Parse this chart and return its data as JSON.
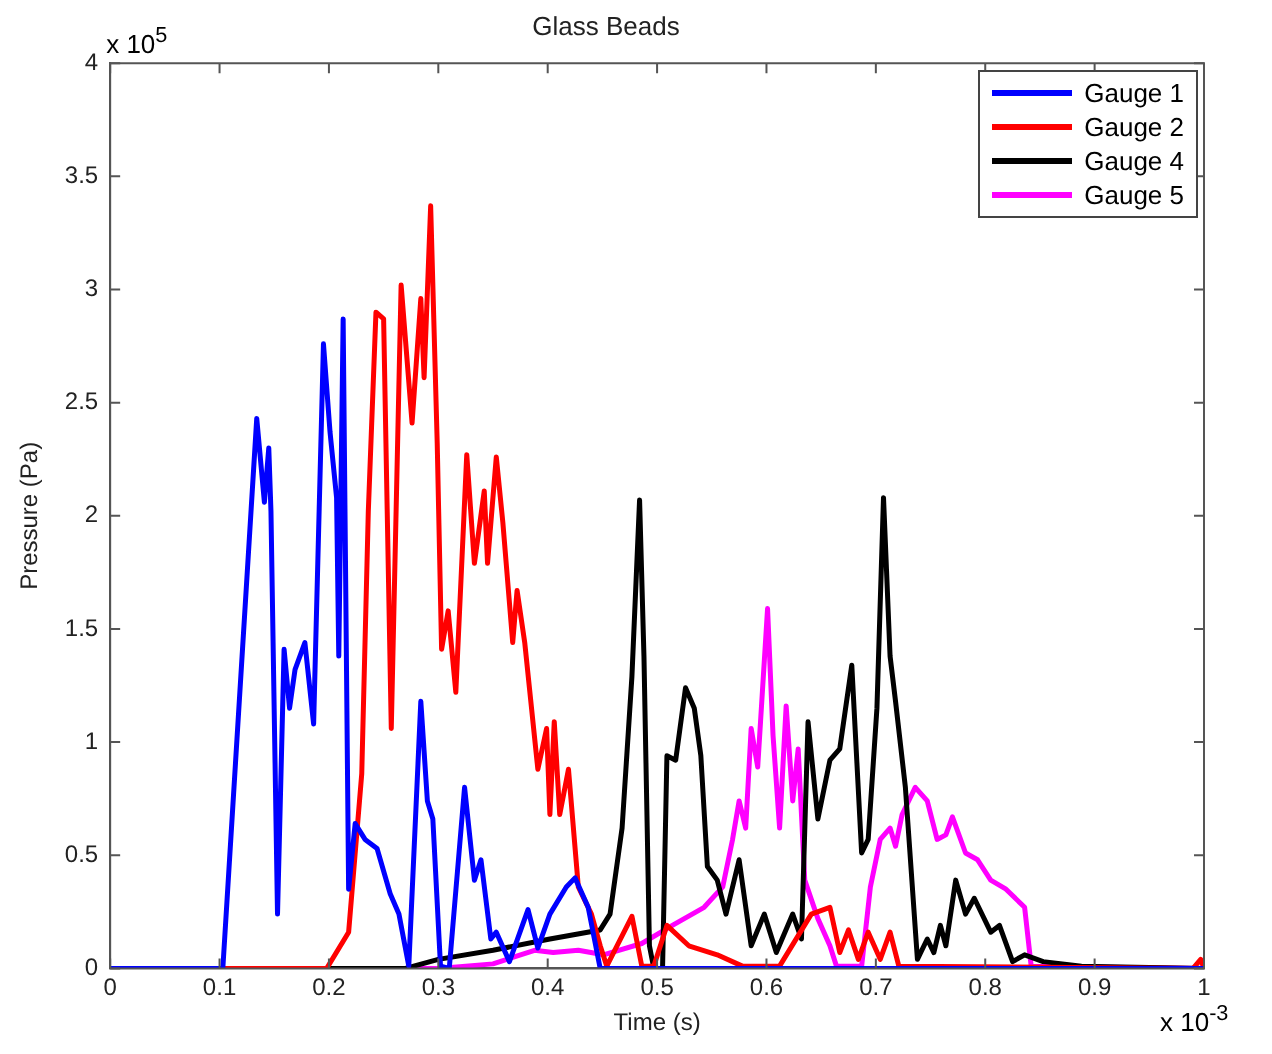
{
  "chart_data": {
    "type": "line",
    "title": "Glass Beads",
    "xlabel": "Time (s)",
    "ylabel": "Pressure (Pa)",
    "annotations": [
      "x 10$^{5}$",
      "x 10$^{-3}$"
    ],
    "xlim": [
      0,
      1
    ],
    "xticks": [
      0,
      0.1,
      0.2,
      0.3,
      0.4,
      0.5,
      0.6,
      0.7,
      0.8,
      0.9,
      1
    ],
    "ylim": [
      0,
      4
    ],
    "yticks": [
      0,
      0.5,
      1,
      1.5,
      2,
      2.5,
      3,
      3.5,
      4
    ],
    "grid": false,
    "legend": "top right",
    "series": [
      {
        "name": "Gauge 1",
        "color": "#0000ff",
        "x": [
          0,
          0.103,
          0.134,
          0.141,
          0.145,
          0.147,
          0.153,
          0.159,
          0.164,
          0.169,
          0.178,
          0.186,
          0.195,
          0.201,
          0.207,
          0.209,
          0.213,
          0.218,
          0.224,
          0.233,
          0.244,
          0.256,
          0.264,
          0.273,
          0.284,
          0.29,
          0.295,
          0.302,
          0.31,
          0.324,
          0.333,
          0.339,
          0.348,
          0.353,
          0.365,
          0.382,
          0.391,
          0.402,
          0.417,
          0.425,
          0.437,
          0.448,
          1
        ],
        "values": [
          0,
          0,
          2.43,
          2.06,
          2.3,
          2.02,
          0.24,
          1.41,
          1.15,
          1.32,
          1.44,
          1.08,
          2.76,
          2.37,
          2.08,
          1.38,
          2.87,
          0.35,
          0.64,
          0.57,
          0.53,
          0.33,
          0.24,
          0.01,
          1.18,
          0.74,
          0.66,
          0.01,
          0,
          0.8,
          0.39,
          0.48,
          0.13,
          0.16,
          0.03,
          0.26,
          0.09,
          0.24,
          0.36,
          0.4,
          0.27,
          0,
          0
        ]
      },
      {
        "name": "Gauge 2",
        "color": "#ff0000",
        "x": [
          0,
          0.198,
          0.218,
          0.23,
          0.236,
          0.243,
          0.25,
          0.257,
          0.266,
          0.276,
          0.284,
          0.287,
          0.293,
          0.299,
          0.303,
          0.309,
          0.316,
          0.326,
          0.333,
          0.342,
          0.345,
          0.353,
          0.359,
          0.368,
          0.372,
          0.379,
          0.391,
          0.399,
          0.402,
          0.406,
          0.411,
          0.419,
          0.428,
          0.44,
          0.448,
          0.454,
          0.477,
          0.486,
          0.497,
          0.509,
          0.529,
          0.555,
          0.578,
          0.612,
          0.641,
          0.658,
          0.667,
          0.675,
          0.684,
          0.693,
          0.704,
          0.713,
          0.721,
          0.99,
          0.997,
          1
        ],
        "values": [
          0,
          0,
          0.16,
          0.86,
          2.02,
          2.9,
          2.87,
          1.06,
          3.02,
          2.41,
          2.96,
          2.61,
          3.37,
          2.32,
          1.41,
          1.58,
          1.22,
          2.27,
          1.79,
          2.11,
          1.79,
          2.26,
          1.97,
          1.44,
          1.67,
          1.44,
          0.88,
          1.06,
          0.68,
          1.09,
          0.68,
          0.88,
          0.36,
          0.24,
          0.1,
          0.01,
          0.23,
          0.01,
          0.01,
          0.19,
          0.1,
          0.06,
          0.01,
          0.01,
          0.24,
          0.27,
          0.07,
          0.17,
          0.04,
          0.16,
          0.04,
          0.16,
          0.01,
          0,
          0.04,
          0
        ]
      },
      {
        "name": "Gauge 4",
        "color": "#000000",
        "x": [
          0,
          0.27,
          0.3,
          0.35,
          0.402,
          0.448,
          0.457,
          0.468,
          0.477,
          0.484,
          0.488,
          0.493,
          0.497,
          0.505,
          0.509,
          0.517,
          0.526,
          0.534,
          0.54,
          0.546,
          0.555,
          0.563,
          0.575,
          0.586,
          0.598,
          0.609,
          0.624,
          0.632,
          0.638,
          0.647,
          0.658,
          0.667,
          0.678,
          0.687,
          0.693,
          0.701,
          0.707,
          0.713,
          0.718,
          0.727,
          0.738,
          0.747,
          0.753,
          0.759,
          0.764,
          0.773,
          0.782,
          0.79,
          0.805,
          0.813,
          0.825,
          0.836,
          0.853,
          0.888,
          1
        ],
        "values": [
          0,
          0,
          0.04,
          0.08,
          0.13,
          0.17,
          0.24,
          0.62,
          1.29,
          2.07,
          1.38,
          0.1,
          0,
          0,
          0.94,
          0.92,
          1.24,
          1.15,
          0.94,
          0.45,
          0.39,
          0.24,
          0.48,
          0.1,
          0.24,
          0.07,
          0.24,
          0.13,
          1.09,
          0.66,
          0.92,
          0.97,
          1.34,
          0.51,
          0.57,
          1.15,
          2.08,
          1.38,
          1.18,
          0.8,
          0.04,
          0.13,
          0.07,
          0.19,
          0.1,
          0.39,
          0.24,
          0.31,
          0.16,
          0.19,
          0.03,
          0.06,
          0.03,
          0.01,
          0
        ]
      },
      {
        "name": "Gauge 5",
        "color": "#ff00ff",
        "x": [
          0,
          0.3,
          0.35,
          0.388,
          0.405,
          0.428,
          0.451,
          0.486,
          0.514,
          0.543,
          0.56,
          0.569,
          0.575,
          0.581,
          0.586,
          0.592,
          0.601,
          0.606,
          0.612,
          0.618,
          0.624,
          0.629,
          0.635,
          0.647,
          0.658,
          0.664,
          0.687,
          0.695,
          0.704,
          0.713,
          0.718,
          0.724,
          0.736,
          0.747,
          0.756,
          0.764,
          0.77,
          0.782,
          0.793,
          0.805,
          0.819,
          0.836,
          0.842,
          1
        ],
        "values": [
          0,
          0,
          0.02,
          0.08,
          0.07,
          0.08,
          0.06,
          0.11,
          0.19,
          0.27,
          0.36,
          0.57,
          0.74,
          0.62,
          1.06,
          0.89,
          1.59,
          1.03,
          0.62,
          1.16,
          0.74,
          0.97,
          0.39,
          0.22,
          0.1,
          0.01,
          0.01,
          0.36,
          0.57,
          0.62,
          0.54,
          0.68,
          0.8,
          0.74,
          0.57,
          0.59,
          0.67,
          0.51,
          0.48,
          0.39,
          0.35,
          0.27,
          0.01,
          0
        ]
      }
    ]
  }
}
